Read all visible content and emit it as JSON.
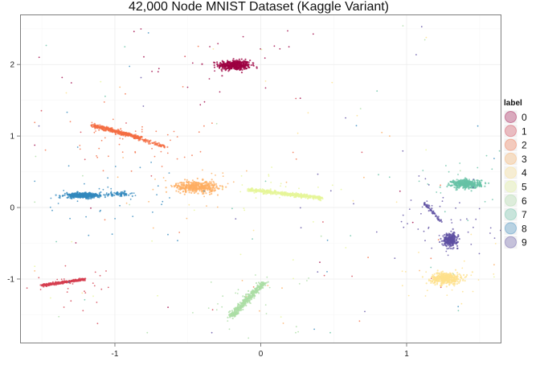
{
  "chart_data": {
    "type": "scatter",
    "title": "42,000 Node MNIST Dataset (Kaggle Variant)",
    "xlabel": "",
    "ylabel": "",
    "xlim": [
      -1.65,
      1.65
    ],
    "ylim": [
      -1.9,
      2.7
    ],
    "x_ticks": [
      -1,
      0,
      1
    ],
    "x_tick_labels": [
      "-1",
      "0",
      "1"
    ],
    "y_ticks": [
      -1,
      0,
      1,
      2
    ],
    "y_tick_labels": [
      "-1",
      "0",
      "1",
      "2"
    ],
    "grid": true,
    "legend": {
      "title": "label",
      "position": "right",
      "entries": [
        "0",
        "1",
        "2",
        "3",
        "4",
        "5",
        "6",
        "7",
        "8",
        "9"
      ]
    },
    "series": [
      {
        "name": "0",
        "color": "#9e0142",
        "clusters": [
          {
            "shape": "blob",
            "center": [
              -0.18,
              1.99
            ],
            "spread": [
              0.11,
              0.07
            ],
            "count": 420
          }
        ]
      },
      {
        "name": "1",
        "color": "#d53e4f",
        "clusters": [
          {
            "shape": "line",
            "from": [
              -1.5,
              -1.09
            ],
            "to": [
              -1.2,
              -1.0
            ],
            "width": 0.02,
            "count": 300
          }
        ]
      },
      {
        "name": "2",
        "color": "#f46d43",
        "clusters": [
          {
            "shape": "line",
            "from": [
              -1.15,
              1.15
            ],
            "to": [
              -0.82,
              0.97
            ],
            "width": 0.035,
            "count": 380
          },
          {
            "shape": "line",
            "from": [
              -0.82,
              0.95
            ],
            "to": [
              -0.65,
              0.85
            ],
            "width": 0.03,
            "count": 60
          }
        ]
      },
      {
        "name": "3",
        "color": "#fdae61",
        "clusters": [
          {
            "shape": "blob",
            "center": [
              -0.44,
              0.29
            ],
            "spread": [
              0.14,
              0.08
            ],
            "count": 420
          }
        ]
      },
      {
        "name": "4",
        "color": "#fee08b",
        "clusters": [
          {
            "shape": "blob",
            "center": [
              1.27,
              -0.99
            ],
            "spread": [
              0.1,
              0.08
            ],
            "count": 400
          }
        ]
      },
      {
        "name": "5",
        "color": "#e6f598",
        "clusters": [
          {
            "shape": "line",
            "from": [
              -0.08,
              0.25
            ],
            "to": [
              0.42,
              0.13
            ],
            "width": 0.035,
            "count": 420
          }
        ]
      },
      {
        "name": "6",
        "color": "#abdda4",
        "clusters": [
          {
            "shape": "line",
            "from": [
              -0.2,
              -1.52
            ],
            "to": [
              0.02,
              -1.05
            ],
            "width": 0.04,
            "count": 380
          }
        ]
      },
      {
        "name": "7",
        "color": "#66c2a5",
        "clusters": [
          {
            "shape": "blob",
            "center": [
              1.41,
              0.33
            ],
            "spread": [
              0.1,
              0.06
            ],
            "count": 400
          }
        ]
      },
      {
        "name": "8",
        "color": "#3288bd",
        "clusters": [
          {
            "shape": "blob",
            "center": [
              -1.22,
              0.17
            ],
            "spread": [
              0.12,
              0.035
            ],
            "count": 380
          },
          {
            "shape": "blob",
            "center": [
              -0.97,
              0.19
            ],
            "spread": [
              0.1,
              0.03
            ],
            "count": 60
          }
        ]
      },
      {
        "name": "9",
        "color": "#5e4fa2",
        "clusters": [
          {
            "shape": "blob",
            "center": [
              1.3,
              -0.45
            ],
            "spread": [
              0.05,
              0.09
            ],
            "count": 260
          },
          {
            "shape": "line",
            "from": [
              1.12,
              0.07
            ],
            "to": [
              1.24,
              -0.2
            ],
            "width": 0.02,
            "count": 50
          }
        ]
      }
    ]
  }
}
